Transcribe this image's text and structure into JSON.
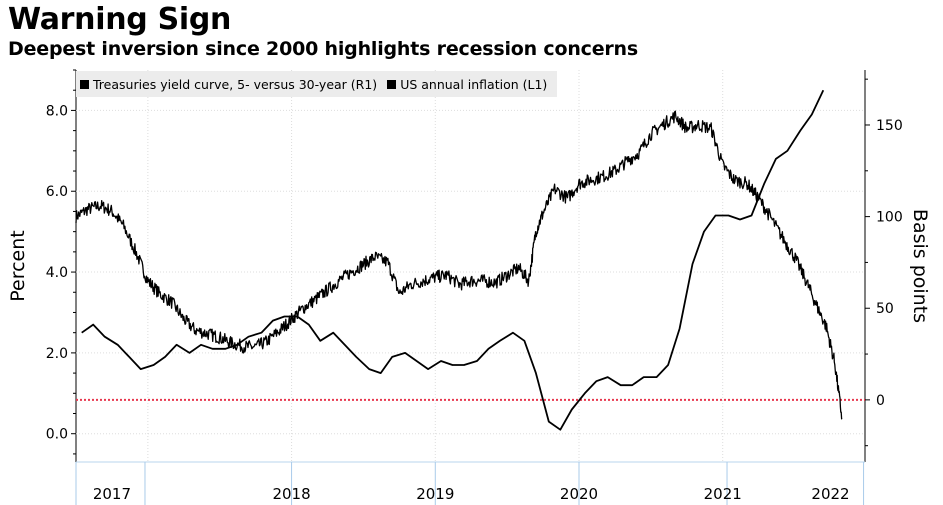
{
  "chart_data": {
    "type": "line",
    "title": "Warning Sign",
    "subtitle": "Deepest inversion since 2000 highlights recession concerns",
    "legend": [
      {
        "label": "Treasuries yield curve, 5- versus 30-year (R1)",
        "axis": "right",
        "color": "#000000"
      },
      {
        "label": "US annual inflation (L1)",
        "axis": "left",
        "color": "#000000"
      }
    ],
    "legend_position": "top-left",
    "left_axis": {
      "label": "Percent",
      "ylim": [
        -0.7,
        9.0
      ],
      "ticks": [
        0.0,
        2.0,
        4.0,
        6.0,
        8.0
      ],
      "tick_labels": [
        "0.0",
        "2.0",
        "4.0",
        "6.0",
        "8.0"
      ]
    },
    "right_axis": {
      "label": "Basis points",
      "ylim": [
        -33.9,
        180
      ],
      "ticks": [
        0,
        50,
        100,
        150
      ],
      "tick_labels": [
        "0",
        "50",
        "100",
        "150"
      ]
    },
    "x_axis": {
      "xlim": [
        2017.0,
        2022.49
      ],
      "years": [
        "2017",
        "2018",
        "2019",
        "2020",
        "2021",
        "2022"
      ],
      "year_positions": [
        2017.25,
        2018.5,
        2019.5,
        2020.5,
        2021.5,
        2022.25
      ]
    },
    "zero_reference": {
      "axis": "right",
      "value": 0,
      "color": "#e8384f"
    },
    "series": [
      {
        "name": "US annual inflation (L1)",
        "axis": "left",
        "x": [
          2017.04,
          2017.12,
          2017.2,
          2017.29,
          2017.37,
          2017.45,
          2017.54,
          2017.62,
          2017.7,
          2017.79,
          2017.87,
          2017.95,
          2018.04,
          2018.12,
          2018.2,
          2018.29,
          2018.37,
          2018.45,
          2018.54,
          2018.62,
          2018.7,
          2018.79,
          2018.87,
          2018.95,
          2019.04,
          2019.12,
          2019.2,
          2019.29,
          2019.37,
          2019.45,
          2019.54,
          2019.62,
          2019.7,
          2019.79,
          2019.87,
          2019.95,
          2020.04,
          2020.12,
          2020.2,
          2020.29,
          2020.37,
          2020.45,
          2020.54,
          2020.62,
          2020.7,
          2020.79,
          2020.87,
          2020.95,
          2021.04,
          2021.12,
          2021.2,
          2021.29,
          2021.37,
          2021.45,
          2021.54,
          2021.62,
          2021.7,
          2021.79,
          2021.87,
          2021.95,
          2022.04,
          2022.12,
          2022.2
        ],
        "values": [
          2.5,
          2.7,
          2.4,
          2.2,
          1.9,
          1.6,
          1.7,
          1.9,
          2.2,
          2.0,
          2.2,
          2.1,
          2.1,
          2.2,
          2.4,
          2.5,
          2.8,
          2.9,
          2.9,
          2.7,
          2.3,
          2.5,
          2.2,
          1.9,
          1.6,
          1.5,
          1.9,
          2.0,
          1.8,
          1.6,
          1.8,
          1.7,
          1.7,
          1.8,
          2.1,
          2.3,
          2.5,
          2.3,
          1.5,
          0.3,
          0.1,
          0.6,
          1.0,
          1.3,
          1.4,
          1.2,
          1.2,
          1.4,
          1.4,
          1.7,
          2.6,
          4.2,
          5.0,
          5.4,
          5.4,
          5.3,
          5.4,
          6.2,
          6.8,
          7.0,
          7.5,
          7.9,
          8.5
        ]
      },
      {
        "name": "Treasuries yield curve, 5- versus 30-year (R1)",
        "axis": "right",
        "x": [
          2017.0,
          2017.08,
          2017.17,
          2017.25,
          2017.33,
          2017.42,
          2017.5,
          2017.58,
          2017.67,
          2017.75,
          2017.83,
          2017.92,
          2018.0,
          2018.08,
          2018.17,
          2018.25,
          2018.33,
          2018.42,
          2018.5,
          2018.58,
          2018.67,
          2018.75,
          2018.83,
          2018.92,
          2019.0,
          2019.08,
          2019.17,
          2019.25,
          2019.33,
          2019.42,
          2019.5,
          2019.58,
          2019.67,
          2019.75,
          2019.83,
          2019.92,
          2020.0,
          2020.08,
          2020.15,
          2020.2,
          2020.25,
          2020.33,
          2020.42,
          2020.5,
          2020.58,
          2020.67,
          2020.75,
          2020.83,
          2020.92,
          2021.0,
          2021.08,
          2021.17,
          2021.25,
          2021.33,
          2021.42,
          2021.5,
          2021.58,
          2021.67,
          2021.75,
          2021.83,
          2021.92,
          2022.0,
          2022.08,
          2022.15,
          2022.22,
          2022.28,
          2022.33
        ],
        "values": [
          100,
          104,
          106,
          103,
          95,
          80,
          65,
          58,
          53,
          44,
          38,
          36,
          34,
          31,
          29,
          29,
          32,
          38,
          44,
          50,
          55,
          60,
          65,
          70,
          74,
          78,
          75,
          58,
          63,
          65,
          67,
          68,
          63,
          65,
          65,
          64,
          68,
          72,
          65,
          92,
          102,
          115,
          110,
          118,
          120,
          122,
          125,
          130,
          135,
          145,
          150,
          155,
          148,
          150,
          148,
          128,
          120,
          118,
          110,
          100,
          88,
          78,
          65,
          52,
          40,
          20,
          -10
        ]
      }
    ]
  }
}
